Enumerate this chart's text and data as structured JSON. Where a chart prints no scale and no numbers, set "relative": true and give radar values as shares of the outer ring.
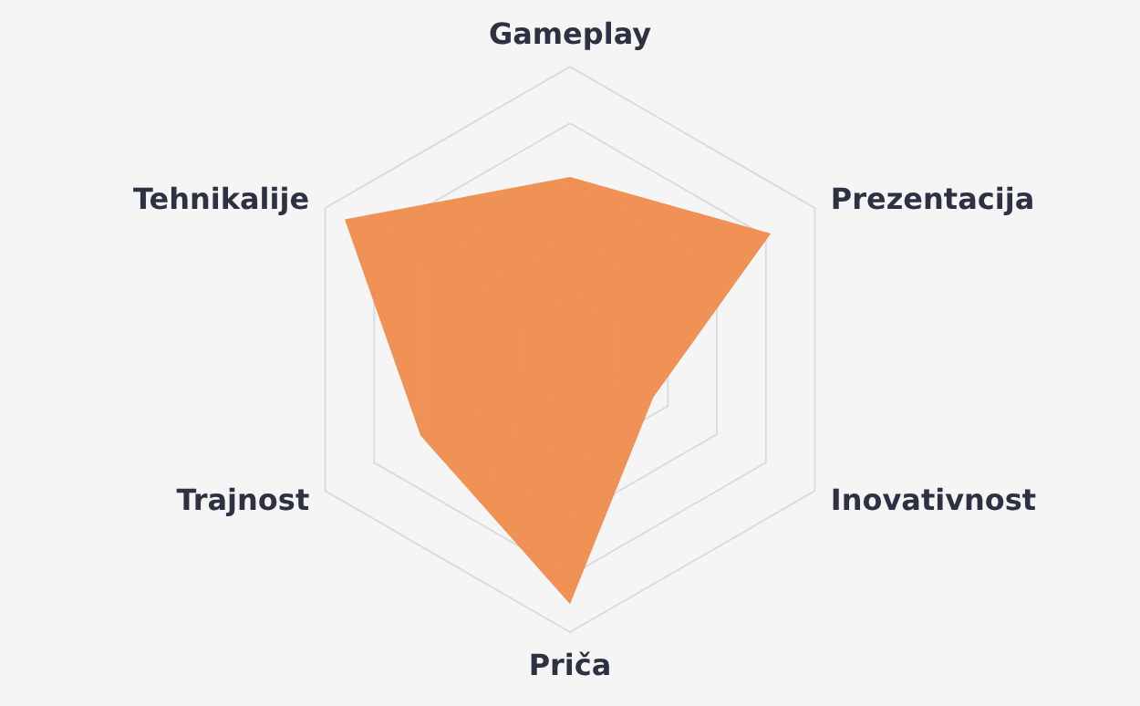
{
  "chart_data": {
    "type": "radar",
    "relative": true,
    "grid": true,
    "categories": [
      "Gameplay",
      "Prezentacija",
      "Inovativnost",
      "Priča",
      "Trajnost",
      "Tehnikalije"
    ],
    "series": [
      {
        "color": "#ef8644",
        "values": [
          0.61,
          0.82,
          0.34,
          0.9,
          0.61,
          0.92
        ]
      }
    ]
  }
}
